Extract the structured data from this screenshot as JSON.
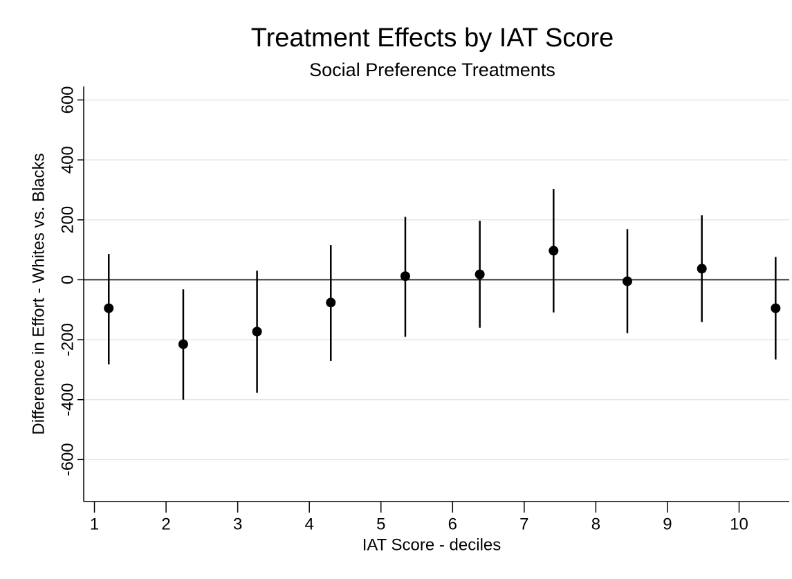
{
  "chart_data": {
    "type": "errorbar",
    "title": "Treatment Effects by IAT Score",
    "subtitle": "Social Preference Treatments",
    "x_label": "IAT Score - deciles",
    "y_label": "Difference in Effort - Whites vs. Blacks",
    "x": [
      1.2,
      2.24,
      3.27,
      4.3,
      5.34,
      6.38,
      7.41,
      8.44,
      9.48,
      10.51
    ],
    "values": [
      -95,
      -215,
      -173,
      -76,
      12,
      18,
      97,
      -5,
      37,
      -95
    ],
    "lower": [
      -282,
      -400,
      -377,
      -271,
      -190,
      -160,
      -109,
      -178,
      -141,
      -266
    ],
    "upper": [
      86,
      -32,
      30,
      116,
      210,
      197,
      303,
      169,
      215,
      76
    ],
    "color": "#000000",
    "xlim": [
      0.85,
      10.7
    ],
    "xticks": [
      1,
      2,
      3,
      4,
      5,
      6,
      7,
      8,
      9,
      10
    ],
    "ylim": [
      -740,
      645
    ],
    "yticks": [
      -600,
      -400,
      -200,
      0,
      200,
      400,
      600
    ],
    "yline": 0,
    "grid": true
  }
}
